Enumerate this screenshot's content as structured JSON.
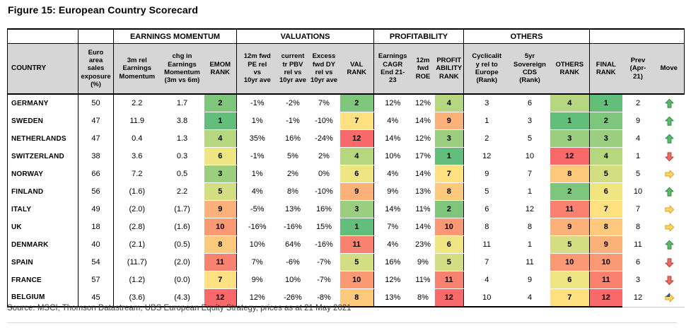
{
  "title": "Figure 15: European Country Scorecard",
  "source": "Source: MSCI, Thomson Datastream, UBS European Equity Strategy, prices as at 21 May 2021",
  "table": {
    "groups": [
      {
        "label": "",
        "span": 1
      },
      {
        "label": "",
        "span": 1
      },
      {
        "label": "EARNINGS MOMENTUM",
        "span": 3
      },
      {
        "label": "VALUATIONS",
        "span": 4
      },
      {
        "label": "PROFITABILITY",
        "span": 3
      },
      {
        "label": "OTHERS",
        "span": 3
      },
      {
        "label": "",
        "span": 3
      }
    ],
    "columns": [
      {
        "key": "country",
        "label": "COUNTRY"
      },
      {
        "key": "euro_exposure",
        "label": "Euro\narea\nsales\nexposure\n(%)"
      },
      {
        "key": "rel_3m",
        "label": "3m rel\nEarnings\nMomentum"
      },
      {
        "key": "chg_3v6",
        "label": "chg in\nEarnings\nMomentum\n(3m vs 6m)"
      },
      {
        "key": "emom_rank",
        "label": "EMOM\nRANK"
      },
      {
        "key": "pe_12m",
        "label": "12m fwd\nPE rel\nvs\n10yr ave"
      },
      {
        "key": "pbv",
        "label": "current\ntr PBV\nrel vs\n10yr ave"
      },
      {
        "key": "dy_excess",
        "label": "Excess\nfwd DY\nrel vs\n10yr ave"
      },
      {
        "key": "val_rank",
        "label": "VAL\nRANK"
      },
      {
        "key": "cagr",
        "label": "Earnings\nCAGR\nEnd 21-\n23"
      },
      {
        "key": "roe",
        "label": "12m\nfwd\nROE"
      },
      {
        "key": "prof_rank",
        "label": "PROFIT\nABILITY\nRANK"
      },
      {
        "key": "cyclicality",
        "label": "Cyclicalit\ny rel to\nEurope\n(Rank)"
      },
      {
        "key": "cds",
        "label": "5yr\nSovereign\nCDS\n(Rank)"
      },
      {
        "key": "others_rank",
        "label": "OTHERS\nRANK"
      },
      {
        "key": "final_rank",
        "label": "FINAL\nRANK"
      },
      {
        "key": "prev",
        "label": "Prev\n(Apr-\n21)"
      },
      {
        "key": "move",
        "label": "Move"
      }
    ],
    "rows": [
      [
        "GERMANY",
        "50",
        "2.2",
        "1.7",
        "2",
        "-1%",
        "-2%",
        "7%",
        "2",
        "12%",
        "12%",
        "4",
        "3",
        "6",
        "4",
        "1",
        "2",
        "up"
      ],
      [
        "SWEDEN",
        "47",
        "11.9",
        "3.8",
        "1",
        "1%",
        "-1%",
        "-10%",
        "7",
        "4%",
        "14%",
        "9",
        "1",
        "3",
        "1",
        "2",
        "9",
        "up"
      ],
      [
        "NETHERLANDS",
        "47",
        "0.4",
        "1.3",
        "4",
        "35%",
        "16%",
        "-24%",
        "12",
        "14%",
        "12%",
        "3",
        "2",
        "5",
        "3",
        "3",
        "4",
        "up"
      ],
      [
        "SWITZERLAND",
        "38",
        "3.6",
        "0.3",
        "6",
        "-1%",
        "5%",
        "2%",
        "4",
        "10%",
        "17%",
        "1",
        "12",
        "10",
        "12",
        "4",
        "1",
        "down"
      ],
      [
        "NORWAY",
        "66",
        "7.2",
        "0.5",
        "3",
        "1%",
        "2%",
        "0%",
        "6",
        "4%",
        "14%",
        "7",
        "9",
        "7",
        "8",
        "5",
        "5",
        "right"
      ],
      [
        "FINLAND",
        "56",
        "(1.6)",
        "2.2",
        "5",
        "4%",
        "8%",
        "-10%",
        "9",
        "9%",
        "13%",
        "8",
        "5",
        "1",
        "2",
        "6",
        "10",
        "up"
      ],
      [
        "ITALY",
        "49",
        "(2.0)",
        "(1.7)",
        "9",
        "-5%",
        "13%",
        "16%",
        "3",
        "14%",
        "11%",
        "2",
        "6",
        "12",
        "11",
        "7",
        "7",
        "right"
      ],
      [
        "UK",
        "18",
        "(2.8)",
        "(1.6)",
        "10",
        "-16%",
        "-16%",
        "15%",
        "1",
        "7%",
        "14%",
        "10",
        "8",
        "8",
        "9",
        "8",
        "8",
        "right"
      ],
      [
        "DENMARK",
        "40",
        "(2.1)",
        "(0.5)",
        "8",
        "10%",
        "64%",
        "-16%",
        "11",
        "4%",
        "23%",
        "6",
        "11",
        "1",
        "5",
        "9",
        "11",
        "up"
      ],
      [
        "SPAIN",
        "54",
        "(11.7)",
        "(2.0)",
        "11",
        "7%",
        "-6%",
        "-7%",
        "5",
        "16%",
        "9%",
        "5",
        "7",
        "11",
        "10",
        "10",
        "6",
        "down"
      ],
      [
        "FRANCE",
        "57",
        "(1.2)",
        "(0.0)",
        "7",
        "9%",
        "10%",
        "-7%",
        "10",
        "12%",
        "11%",
        "11",
        "4",
        "9",
        "6",
        "11",
        "3",
        "down"
      ],
      [
        "BELGIUM",
        "45",
        "(3.6)",
        "(4.3)",
        "12",
        "12%",
        "-26%",
        "-8%",
        "8",
        "13%",
        "8%",
        "12",
        "10",
        "4",
        "7",
        "12",
        "12",
        "right"
      ]
    ]
  },
  "rank_columns": [
    "emom_rank",
    "val_rank",
    "prof_rank",
    "others_rank",
    "final_rank"
  ],
  "rank_colors": {
    "1": "#63be7b",
    "2": "#7fc67d",
    "3": "#9bce7f",
    "4": "#b7d680",
    "5": "#d3de82",
    "6": "#efe683",
    "7": "#ffe182",
    "8": "#fdc97d",
    "9": "#fcb179",
    "10": "#fa9974",
    "11": "#f98170",
    "12": "#f8696b"
  },
  "move_arrows": {
    "up": {
      "fill": "#5cb86a",
      "stroke": "#35884a"
    },
    "down": {
      "fill": "#ea6b60",
      "stroke": "#ae463e"
    },
    "right": {
      "fill": "#fcd75f",
      "stroke": "#dd9f33"
    }
  }
}
